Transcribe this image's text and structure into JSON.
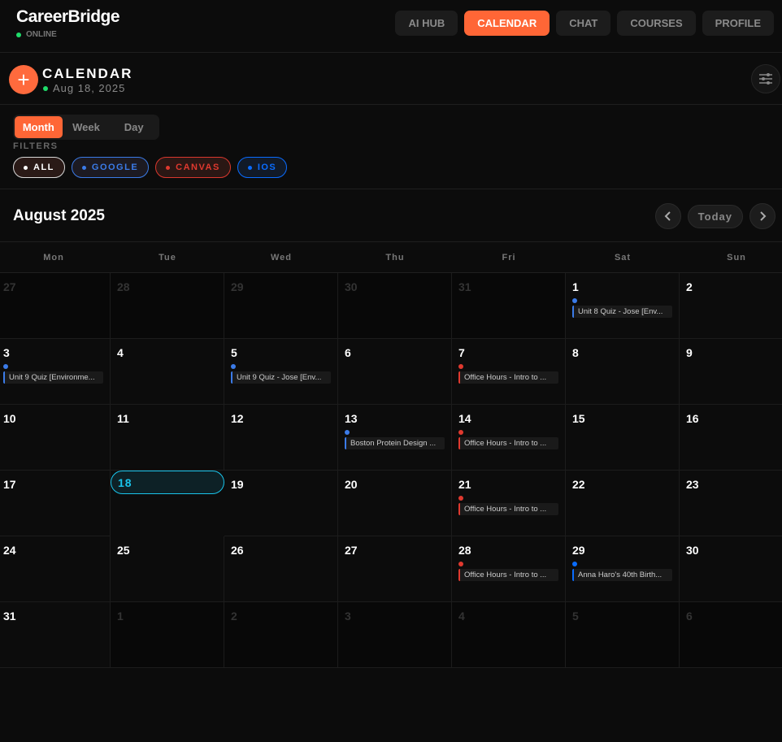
{
  "app": {
    "name": "CareerBridge",
    "status": "ONLINE"
  },
  "nav": [
    {
      "label": "AI HUB",
      "active": false
    },
    {
      "label": "CALENDAR",
      "active": true
    },
    {
      "label": "CHAT",
      "active": false
    },
    {
      "label": "COURSES",
      "active": false
    },
    {
      "label": "PROFILE",
      "active": false
    }
  ],
  "header": {
    "title": "CALENDAR",
    "date": "Aug 18, 2025",
    "add_icon": "plus-icon",
    "settings_icon": "sliders-icon"
  },
  "views": [
    {
      "label": "Month",
      "active": true
    },
    {
      "label": "Week",
      "active": false
    },
    {
      "label": "Day",
      "active": false
    }
  ],
  "filters": {
    "label": "FILTERS",
    "chips": [
      {
        "label": "ALL",
        "color": "#ffffff",
        "border": "#d8d8d8",
        "bg": "#2a1a17"
      },
      {
        "label": "GOOGLE",
        "color": "#3b7be8",
        "border": "#3b7be8",
        "bg": "#1c1a22"
      },
      {
        "label": "CANVAS",
        "color": "#e0392f",
        "border": "#d9382e",
        "bg": "#2a1714"
      },
      {
        "label": "IOS",
        "color": "#0a6cff",
        "border": "#0a6cff",
        "bg": "#111a28"
      }
    ]
  },
  "colors": {
    "google": "#3b7be8",
    "canvas": "#e0392f",
    "ios": "#0a6cff",
    "accent": "#ff6636",
    "today": "#19c3ea"
  },
  "month": {
    "title": "August 2025",
    "today_label": "Today"
  },
  "weekdays": [
    "Mon",
    "Tue",
    "Wed",
    "Thu",
    "Fri",
    "Sat",
    "Sun"
  ],
  "weeks": [
    [
      {
        "n": "27",
        "muted": true
      },
      {
        "n": "28",
        "muted": true
      },
      {
        "n": "29",
        "muted": true
      },
      {
        "n": "30",
        "muted": true
      },
      {
        "n": "31",
        "muted": true
      },
      {
        "n": "1",
        "events": [
          {
            "title": "Unit 8 Quiz - Jose [Env...",
            "source": "google"
          }
        ]
      },
      {
        "n": "2"
      }
    ],
    [
      {
        "n": "3",
        "events": [
          {
            "title": "Unit 9 Quiz [Environme...",
            "source": "google"
          }
        ]
      },
      {
        "n": "4"
      },
      {
        "n": "5",
        "events": [
          {
            "title": "Unit 9 Quiz - Jose [Env...",
            "source": "google"
          }
        ]
      },
      {
        "n": "6"
      },
      {
        "n": "7",
        "events": [
          {
            "title": "Office Hours - Intro to ...",
            "source": "canvas"
          }
        ]
      },
      {
        "n": "8"
      },
      {
        "n": "9"
      }
    ],
    [
      {
        "n": "10"
      },
      {
        "n": "11"
      },
      {
        "n": "12"
      },
      {
        "n": "13",
        "events": [
          {
            "title": "Boston Protein Design ...",
            "source": "google"
          }
        ]
      },
      {
        "n": "14",
        "events": [
          {
            "title": "Office Hours - Intro to ...",
            "source": "canvas"
          }
        ]
      },
      {
        "n": "15"
      },
      {
        "n": "16"
      }
    ],
    [
      {
        "n": "17"
      },
      {
        "n": "18",
        "today": true
      },
      {
        "n": "19"
      },
      {
        "n": "20"
      },
      {
        "n": "21",
        "events": [
          {
            "title": "Office Hours - Intro to ...",
            "source": "canvas"
          }
        ]
      },
      {
        "n": "22"
      },
      {
        "n": "23"
      }
    ],
    [
      {
        "n": "24"
      },
      {
        "n": "25"
      },
      {
        "n": "26"
      },
      {
        "n": "27"
      },
      {
        "n": "28",
        "events": [
          {
            "title": "Office Hours - Intro to ...",
            "source": "canvas"
          }
        ]
      },
      {
        "n": "29",
        "events": [
          {
            "title": "Anna Haro's 40th Birth...",
            "source": "ios"
          }
        ]
      },
      {
        "n": "30"
      }
    ],
    [
      {
        "n": "31"
      },
      {
        "n": "1",
        "muted": true
      },
      {
        "n": "2",
        "muted": true
      },
      {
        "n": "3",
        "muted": true
      },
      {
        "n": "4",
        "muted": true
      },
      {
        "n": "5",
        "muted": true
      },
      {
        "n": "6",
        "muted": true
      }
    ]
  ]
}
